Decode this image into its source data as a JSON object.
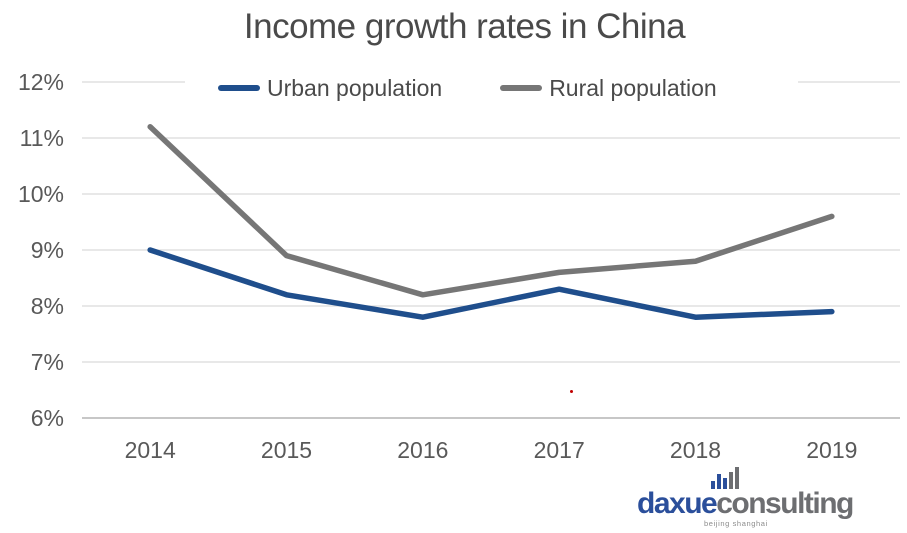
{
  "chart_data": {
    "type": "line",
    "title": "Income growth rates in China",
    "categories": [
      "2014",
      "2015",
      "2016",
      "2017",
      "2018",
      "2019"
    ],
    "series": [
      {
        "name": "Urban population",
        "color": "#1F4E8C",
        "values": [
          9.0,
          8.2,
          7.8,
          8.3,
          7.8,
          7.9
        ]
      },
      {
        "name": "Rural population",
        "color": "#767676",
        "values": [
          11.2,
          8.9,
          8.2,
          8.6,
          8.8,
          9.6
        ]
      }
    ],
    "xlabel": "",
    "ylabel": "",
    "ylim": [
      6,
      12
    ],
    "y_axis": {
      "min": 6,
      "max": 12,
      "tick_step": 1,
      "tick_labels": [
        "6%",
        "7%",
        "8%",
        "9%",
        "10%",
        "11%",
        "12%"
      ]
    },
    "grid": "horizontal",
    "legend_position": "top",
    "colors": {
      "gridline": "#D9D9D9",
      "axis_line": "#BFBFBF",
      "tick_text": "#595959",
      "title_text": "#4a4a4a",
      "legend_text": "#4a4a4a"
    }
  },
  "annotations": {
    "stray_dot": {
      "color": "#C00000"
    }
  },
  "logo": {
    "brand_left": "daxue",
    "brand_right": "consulting",
    "tagline": "beijing shanghai",
    "icon": "bar-chart-icon",
    "blue": "#2B4F9B",
    "gray": "#6D6E71"
  }
}
